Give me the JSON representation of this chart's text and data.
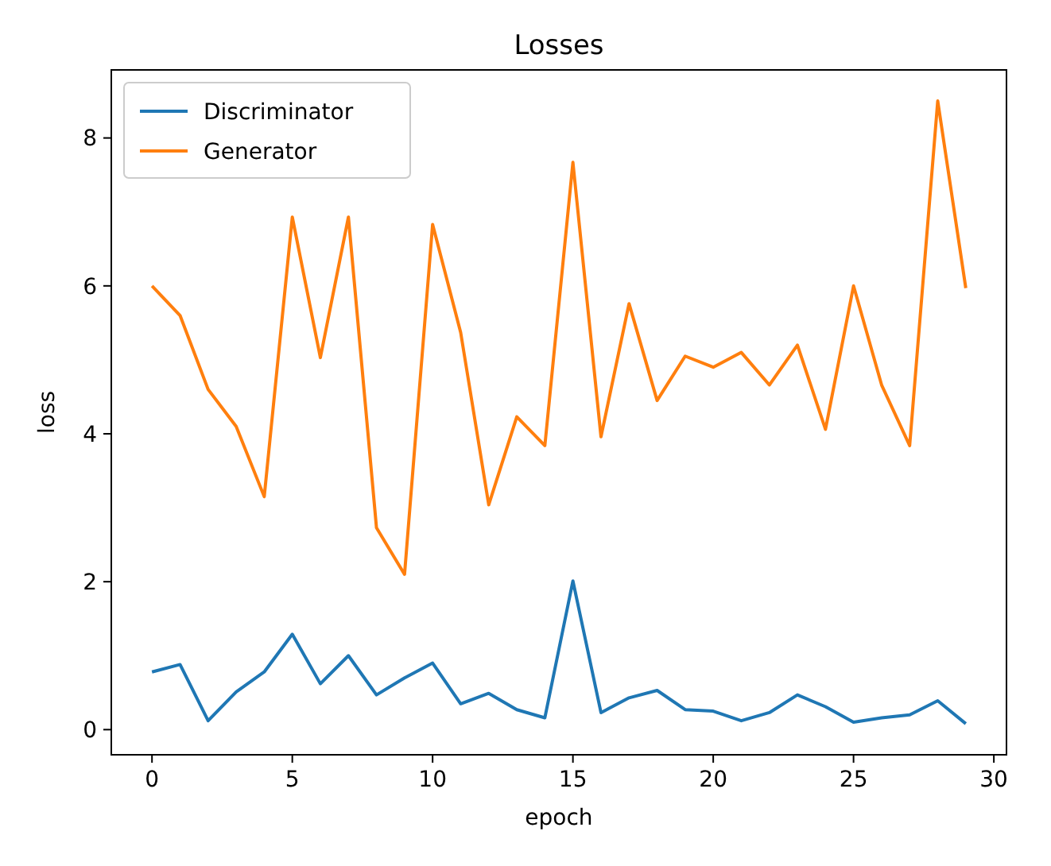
{
  "chart_data": {
    "type": "line",
    "title": "Losses",
    "xlabel": "epoch",
    "ylabel": "loss",
    "x": [
      0,
      1,
      2,
      3,
      4,
      5,
      6,
      7,
      8,
      9,
      10,
      11,
      12,
      13,
      14,
      15,
      16,
      17,
      18,
      19,
      20,
      21,
      22,
      23,
      24,
      25,
      26,
      27,
      28,
      29
    ],
    "series": [
      {
        "name": "Discriminator",
        "color": "#1f77b4",
        "values": [
          0.78,
          0.88,
          0.12,
          0.51,
          0.78,
          1.29,
          0.62,
          1.0,
          0.47,
          0.7,
          0.9,
          0.35,
          0.49,
          0.27,
          0.16,
          2.01,
          0.23,
          0.43,
          0.53,
          0.27,
          0.25,
          0.12,
          0.23,
          0.47,
          0.31,
          0.1,
          0.16,
          0.2,
          0.39,
          0.08
        ]
      },
      {
        "name": "Generator",
        "color": "#ff7f0e",
        "values": [
          6.0,
          5.6,
          4.6,
          4.1,
          3.15,
          6.93,
          5.03,
          6.93,
          2.73,
          2.1,
          6.83,
          5.37,
          3.04,
          4.23,
          3.84,
          7.67,
          3.96,
          5.76,
          4.45,
          5.05,
          4.9,
          5.1,
          4.66,
          5.2,
          4.06,
          6.0,
          4.66,
          3.84,
          8.5,
          5.97
        ]
      }
    ],
    "xlim": [
      -1.45,
      30.45
    ],
    "xticks": [
      0,
      5,
      10,
      15,
      20,
      25,
      30
    ],
    "ylim": [
      -0.34,
      8.92
    ],
    "yticks": [
      0,
      2,
      4,
      6,
      8
    ],
    "grid": false,
    "legend": "top left",
    "marker": "none",
    "line_style": "solid"
  }
}
